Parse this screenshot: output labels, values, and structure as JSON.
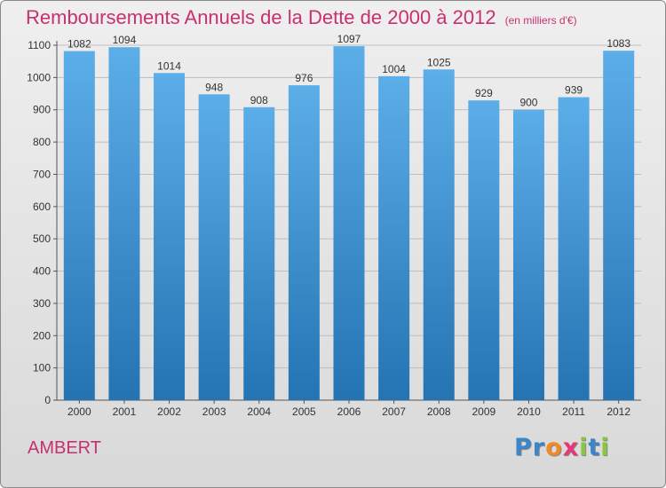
{
  "title": "Remboursements Annuels de la Dette de 2000 à 2012",
  "unit": "(en milliers d'€)",
  "city": "AMBERT",
  "logo": {
    "letters": [
      {
        "ch": "P",
        "color": "#3a86c8"
      },
      {
        "ch": "r",
        "color": "#3a86c8"
      },
      {
        "ch": "o",
        "color": "#f08a24"
      },
      {
        "ch": "x",
        "color": "#e8367a"
      },
      {
        "ch": "i",
        "color": "#8cc63f"
      },
      {
        "ch": "t",
        "color": "#3a86c8"
      },
      {
        "ch": "i",
        "color": "#8cc63f"
      }
    ]
  },
  "colors": {
    "bar_top": "#5caee8",
    "bar_bottom": "#2473b3",
    "title": "#c8306e"
  },
  "chart_data": {
    "type": "bar",
    "categories": [
      "2000",
      "2001",
      "2002",
      "2003",
      "2004",
      "2005",
      "2006",
      "2007",
      "2008",
      "2009",
      "2010",
      "2011",
      "2012"
    ],
    "values": [
      1082,
      1094,
      1014,
      948,
      908,
      976,
      1097,
      1004,
      1025,
      929,
      900,
      939,
      1083
    ],
    "ylim": [
      0,
      1100
    ],
    "yticks": [
      0,
      100,
      200,
      300,
      400,
      500,
      600,
      700,
      800,
      900,
      1000,
      1100
    ],
    "grid": true
  }
}
